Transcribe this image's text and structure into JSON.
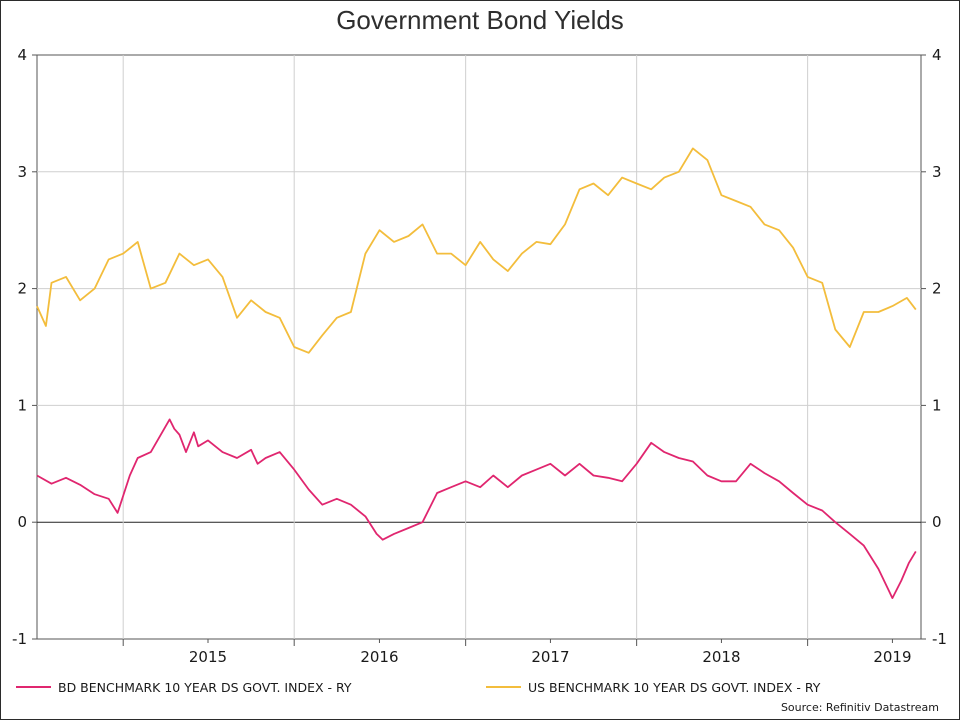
{
  "chart_data": {
    "type": "line",
    "title": "Government Bond Yields",
    "xlabel": "",
    "ylabel": "",
    "ylim": [
      -1,
      4
    ],
    "xlim": [
      "2014-07-01",
      "2019-08-31"
    ],
    "y_ticks": [
      "4",
      "3",
      "2",
      "1",
      "0",
      "-1"
    ],
    "x_tick_labels": [
      "2015",
      "2016",
      "2017",
      "2018",
      "2019"
    ],
    "grid": true,
    "legend_position": "bottom",
    "source": "Source: Refinitiv Datastream",
    "series": [
      {
        "name": "BD BENCHMARK 10 YEAR DS GOVT. INDEX - RY",
        "color": "#e0266f",
        "x": [
          "2014-07-01",
          "2014-08-01",
          "2014-09-01",
          "2014-10-01",
          "2014-11-01",
          "2014-12-01",
          "2014-12-20",
          "2015-01-15",
          "2015-02-01",
          "2015-03-01",
          "2015-04-10",
          "2015-04-20",
          "2015-05-01",
          "2015-05-15",
          "2015-06-01",
          "2015-06-10",
          "2015-07-01",
          "2015-08-01",
          "2015-09-01",
          "2015-10-01",
          "2015-10-15",
          "2015-11-01",
          "2015-12-01",
          "2016-01-01",
          "2016-02-01",
          "2016-03-01",
          "2016-04-01",
          "2016-05-01",
          "2016-06-01",
          "2016-06-25",
          "2016-07-08",
          "2016-08-01",
          "2016-09-01",
          "2016-10-01",
          "2016-11-01",
          "2016-12-01",
          "2017-01-01",
          "2017-02-01",
          "2017-03-01",
          "2017-04-01",
          "2017-05-01",
          "2017-06-01",
          "2017-07-01",
          "2017-08-01",
          "2017-09-01",
          "2017-10-01",
          "2017-11-01",
          "2017-12-01",
          "2018-01-01",
          "2018-02-01",
          "2018-03-01",
          "2018-04-01",
          "2018-05-01",
          "2018-06-01",
          "2018-07-01",
          "2018-08-01",
          "2018-09-01",
          "2018-10-01",
          "2018-11-01",
          "2018-12-01",
          "2019-01-01",
          "2019-02-01",
          "2019-03-01",
          "2019-04-01",
          "2019-05-01",
          "2019-06-01",
          "2019-07-01",
          "2019-07-20",
          "2019-08-05",
          "2019-08-20"
        ],
        "values": [
          0.4,
          0.33,
          0.38,
          0.32,
          0.24,
          0.2,
          0.08,
          0.4,
          0.55,
          0.6,
          0.88,
          0.8,
          0.75,
          0.6,
          0.77,
          0.65,
          0.7,
          0.6,
          0.55,
          0.62,
          0.5,
          0.55,
          0.6,
          0.45,
          0.28,
          0.15,
          0.2,
          0.15,
          0.05,
          -0.1,
          -0.15,
          -0.1,
          -0.05,
          0.0,
          0.25,
          0.3,
          0.35,
          0.3,
          0.4,
          0.3,
          0.4,
          0.45,
          0.5,
          0.4,
          0.5,
          0.4,
          0.38,
          0.35,
          0.5,
          0.68,
          0.6,
          0.55,
          0.52,
          0.4,
          0.35,
          0.35,
          0.5,
          0.42,
          0.35,
          0.25,
          0.15,
          0.1,
          0.0,
          -0.1,
          -0.2,
          -0.4,
          -0.65,
          -0.5,
          -0.35,
          -0.25
        ]
      },
      {
        "name": "US BENCHMARK 10 YEAR DS GOVT. INDEX - RY",
        "color": "#f3bd3c",
        "x": [
          "2014-07-01",
          "2014-07-20",
          "2014-08-01",
          "2014-09-01",
          "2014-10-01",
          "2014-11-01",
          "2014-12-01",
          "2015-01-01",
          "2015-02-01",
          "2015-03-01",
          "2015-04-01",
          "2015-05-01",
          "2015-06-01",
          "2015-07-01",
          "2015-08-01",
          "2015-09-01",
          "2015-10-01",
          "2015-11-01",
          "2015-12-01",
          "2016-01-01",
          "2016-02-01",
          "2016-03-01",
          "2016-04-01",
          "2016-05-01",
          "2016-06-01",
          "2016-07-01",
          "2016-08-01",
          "2016-09-01",
          "2016-10-01",
          "2016-11-01",
          "2016-12-01",
          "2017-01-01",
          "2017-02-01",
          "2017-03-01",
          "2017-04-01",
          "2017-05-01",
          "2017-06-01",
          "2017-07-01",
          "2017-08-01",
          "2017-09-01",
          "2017-10-01",
          "2017-11-01",
          "2017-12-01",
          "2018-01-01",
          "2018-02-01",
          "2018-03-01",
          "2018-04-01",
          "2018-05-01",
          "2018-06-01",
          "2018-07-01",
          "2018-08-01",
          "2018-09-01",
          "2018-10-01",
          "2018-11-01",
          "2018-12-01",
          "2019-01-01",
          "2019-02-01",
          "2019-03-01",
          "2019-04-01",
          "2019-05-01",
          "2019-06-01",
          "2019-07-01",
          "2019-08-01",
          "2019-08-20"
        ],
        "values": [
          1.85,
          1.68,
          2.05,
          2.1,
          1.9,
          2.0,
          2.25,
          2.3,
          2.4,
          2.0,
          2.05,
          2.3,
          2.2,
          2.25,
          2.1,
          1.75,
          1.9,
          1.8,
          1.75,
          1.5,
          1.45,
          1.6,
          1.75,
          1.8,
          2.3,
          2.5,
          2.4,
          2.45,
          2.55,
          2.3,
          2.3,
          2.2,
          2.4,
          2.25,
          2.15,
          2.3,
          2.4,
          2.38,
          2.55,
          2.85,
          2.9,
          2.8,
          2.95,
          2.9,
          2.85,
          2.95,
          3.0,
          3.2,
          3.1,
          2.8,
          2.75,
          2.7,
          2.55,
          2.5,
          2.35,
          2.1,
          2.05,
          1.65,
          1.5,
          1.8,
          1.8,
          1.85,
          1.92,
          1.82
        ]
      }
    ]
  }
}
